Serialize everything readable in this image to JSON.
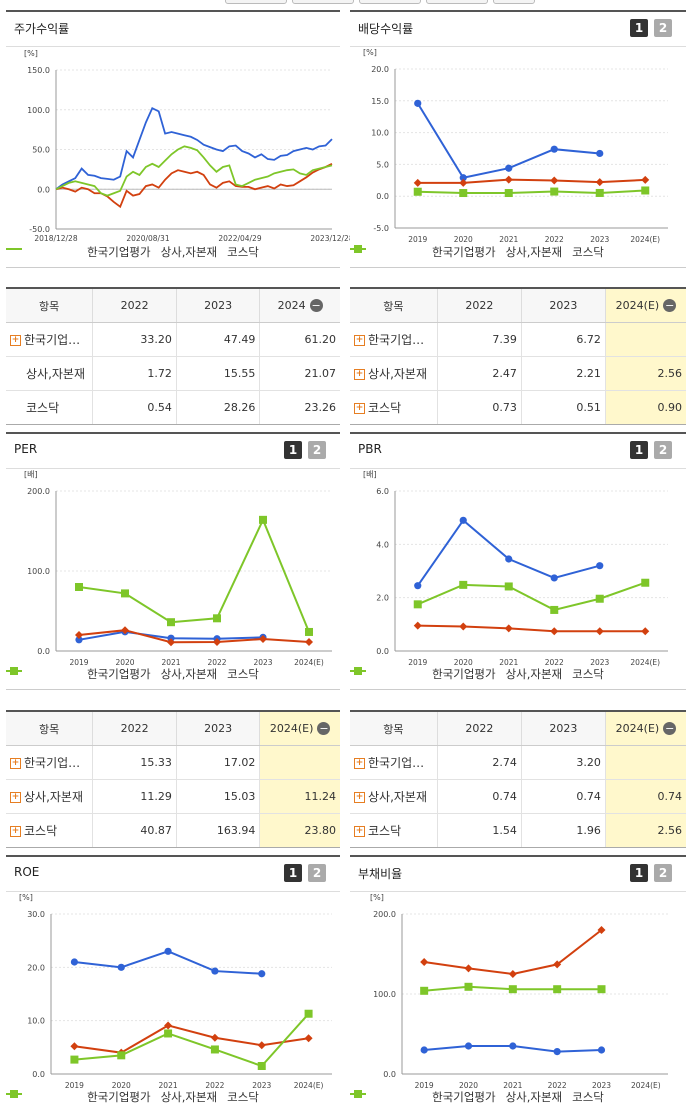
{
  "series_names": [
    "한국기업평가",
    "상사,자본재",
    "코스닥"
  ],
  "colors": {
    "s1": "#2f62d6",
    "s2": "#d2400f",
    "s3": "#7ec629"
  },
  "chart_data": [
    {
      "id": "stock",
      "title": "주가수익률",
      "type": "line",
      "unit": "[%]",
      "ylim": [
        -50,
        150
      ],
      "yticks": [
        "150.0",
        "100.0",
        "50.0",
        "0.0",
        "-50.0"
      ],
      "xticks": [
        "2018/12/28",
        "2020/08/31",
        "2022/04/29",
        "2023/12/28"
      ],
      "series": [
        {
          "name": "한국기업평가",
          "values": [
            0,
            6,
            10,
            14,
            26,
            18,
            17,
            14,
            13,
            12,
            16,
            48,
            40,
            62,
            84,
            102,
            98,
            70,
            72,
            70,
            68,
            66,
            62,
            56,
            53,
            50,
            48,
            54,
            55,
            48,
            45,
            40,
            44,
            38,
            37,
            42,
            43,
            48,
            50,
            52,
            50,
            54,
            55,
            63
          ]
        },
        {
          "name": "상사,자본재",
          "values": [
            0,
            2,
            0,
            -3,
            2,
            0,
            -5,
            -5,
            -9,
            -16,
            -22,
            -2,
            -8,
            -6,
            4,
            6,
            2,
            12,
            20,
            24,
            22,
            20,
            22,
            18,
            6,
            2,
            8,
            10,
            4,
            3,
            3,
            0,
            2,
            4,
            1,
            6,
            4,
            5,
            10,
            15,
            21,
            25,
            28,
            32
          ]
        },
        {
          "name": "코스닥",
          "values": [
            0,
            4,
            8,
            10,
            8,
            6,
            4,
            -5,
            -8,
            -5,
            -2,
            16,
            22,
            18,
            28,
            32,
            28,
            36,
            44,
            50,
            54,
            52,
            49,
            40,
            30,
            22,
            28,
            30,
            6,
            4,
            8,
            12,
            14,
            16,
            20,
            22,
            24,
            25,
            20,
            18,
            24,
            26,
            28,
            30
          ]
        }
      ]
    },
    {
      "id": "dividend",
      "title": "배당수익률",
      "type": "line",
      "unit": "[%]",
      "ylim": [
        -5,
        20
      ],
      "yticks": [
        "20.0",
        "15.0",
        "10.0",
        "5.0",
        "0.0",
        "-5.0"
      ],
      "categories": [
        "2019",
        "2020",
        "2021",
        "2022",
        "2023",
        "2024(E)"
      ],
      "series": [
        {
          "name": "한국기업평가",
          "values": [
            14.6,
            2.9,
            4.4,
            7.39,
            6.72,
            null
          ]
        },
        {
          "name": "상사,자본재",
          "values": [
            2.1,
            2.1,
            2.6,
            2.47,
            2.21,
            2.56
          ]
        },
        {
          "name": "코스닥",
          "values": [
            0.7,
            0.5,
            0.5,
            0.73,
            0.51,
            0.9
          ]
        }
      ]
    },
    {
      "id": "per",
      "title": "PER",
      "type": "line",
      "unit": "[배]",
      "ylim": [
        0,
        200
      ],
      "yticks": [
        "200.0",
        "100.0",
        "0.0"
      ],
      "categories": [
        "2019",
        "2020",
        "2021",
        "2022",
        "2023",
        "2024(E)"
      ],
      "series": [
        {
          "name": "한국기업평가",
          "values": [
            14,
            24,
            16,
            15.33,
            17.02,
            null
          ]
        },
        {
          "name": "상사,자본재",
          "values": [
            20,
            26,
            11,
            11.29,
            15.03,
            11.24
          ]
        },
        {
          "name": "코스닥",
          "values": [
            80,
            72,
            36,
            40.87,
            163.94,
            23.8
          ]
        }
      ]
    },
    {
      "id": "pbr",
      "title": "PBR",
      "type": "line",
      "unit": "[배]",
      "ylim": [
        0,
        6
      ],
      "yticks": [
        "6.0",
        "4.0",
        "2.0",
        "0.0"
      ],
      "categories": [
        "2019",
        "2020",
        "2021",
        "2022",
        "2023",
        "2024(E)"
      ],
      "series": [
        {
          "name": "한국기업평가",
          "values": [
            2.45,
            4.9,
            3.45,
            2.74,
            3.2,
            null
          ]
        },
        {
          "name": "상사,자본재",
          "values": [
            0.95,
            0.92,
            0.85,
            0.74,
            0.74,
            0.74
          ]
        },
        {
          "name": "코스닥",
          "values": [
            1.75,
            2.48,
            2.42,
            1.54,
            1.96,
            2.56
          ]
        }
      ]
    },
    {
      "id": "roe",
      "title": "ROE",
      "type": "line",
      "unit": "[%]",
      "ylim": [
        0,
        30
      ],
      "yticks": [
        "30.0",
        "20.0",
        "10.0",
        "0.0"
      ],
      "categories": [
        "2019",
        "2020",
        "2021",
        "2022",
        "2023",
        "2024(E)"
      ],
      "series": [
        {
          "name": "한국기업평가",
          "values": [
            21,
            20,
            23,
            19.3,
            18.8,
            null
          ]
        },
        {
          "name": "상사,자본재",
          "values": [
            5.2,
            4,
            9.1,
            6.8,
            5.4,
            6.7
          ]
        },
        {
          "name": "코스닥",
          "values": [
            2.7,
            3.5,
            7.6,
            4.6,
            1.5,
            11.3
          ]
        }
      ]
    },
    {
      "id": "debt",
      "title": "부채비율",
      "type": "line",
      "unit": "[%]",
      "ylim": [
        0,
        200
      ],
      "yticks": [
        "200.0",
        "100.0",
        "0.0"
      ],
      "categories": [
        "2019",
        "2020",
        "2021",
        "2022",
        "2023",
        "2024(E)"
      ],
      "series": [
        {
          "name": "한국기업평가",
          "values": [
            30,
            35,
            35,
            28,
            30,
            null
          ]
        },
        {
          "name": "상사,자본재",
          "values": [
            140,
            132,
            125,
            137,
            180,
            null
          ]
        },
        {
          "name": "코스닥",
          "values": [
            104,
            109,
            106,
            106,
            106,
            null
          ]
        }
      ]
    }
  ],
  "tables": {
    "stock": {
      "headers": [
        "항목",
        "2022",
        "2023",
        "2024"
      ],
      "rows": [
        {
          "label": "한국기업…",
          "plus": true,
          "values": [
            "33.20",
            "47.49",
            "61.20"
          ]
        },
        {
          "label": "상사,자본재",
          "plus": false,
          "values": [
            "1.72",
            "15.55",
            "21.07"
          ]
        },
        {
          "label": "코스닥",
          "plus": false,
          "values": [
            "0.54",
            "28.26",
            "23.26"
          ]
        }
      ]
    },
    "dividend": {
      "headers": [
        "항목",
        "2022",
        "2023",
        "2024(E)"
      ],
      "rows": [
        {
          "label": "한국기업…",
          "plus": true,
          "values": [
            "7.39",
            "6.72",
            ""
          ]
        },
        {
          "label": "상사,자본재",
          "plus": true,
          "values": [
            "2.47",
            "2.21",
            "2.56"
          ]
        },
        {
          "label": "코스닥",
          "plus": true,
          "values": [
            "0.73",
            "0.51",
            "0.90"
          ]
        }
      ]
    },
    "per": {
      "headers": [
        "항목",
        "2022",
        "2023",
        "2024(E)"
      ],
      "rows": [
        {
          "label": "한국기업…",
          "plus": true,
          "values": [
            "15.33",
            "17.02",
            ""
          ]
        },
        {
          "label": "상사,자본재",
          "plus": true,
          "values": [
            "11.29",
            "15.03",
            "11.24"
          ]
        },
        {
          "label": "코스닥",
          "plus": true,
          "values": [
            "40.87",
            "163.94",
            "23.80"
          ]
        }
      ]
    },
    "pbr": {
      "headers": [
        "항목",
        "2022",
        "2023",
        "2024(E)"
      ],
      "rows": [
        {
          "label": "한국기업…",
          "plus": true,
          "values": [
            "2.74",
            "3.20",
            ""
          ]
        },
        {
          "label": "상사,자본재",
          "plus": true,
          "values": [
            "0.74",
            "0.74",
            "0.74"
          ]
        },
        {
          "label": "코스닥",
          "plus": true,
          "values": [
            "1.54",
            "1.96",
            "2.56"
          ]
        }
      ]
    }
  },
  "pager": [
    "1",
    "2"
  ],
  "plus_glyph": "+",
  "minus_glyph": "−"
}
